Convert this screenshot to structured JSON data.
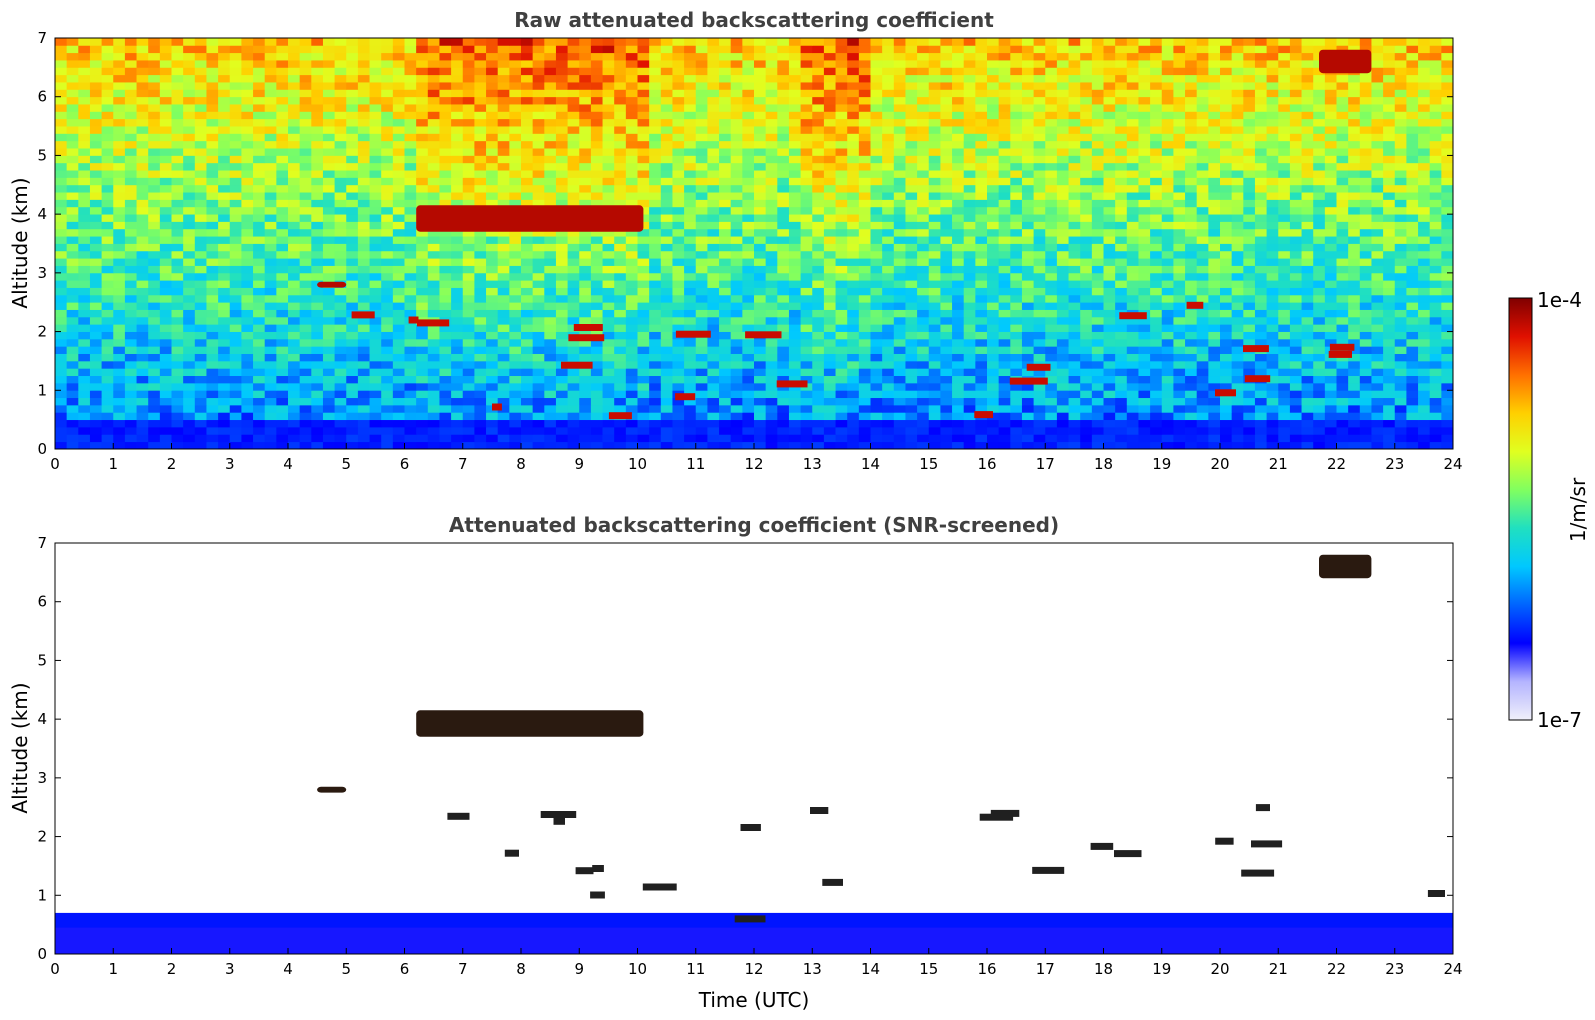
{
  "chart_data": [
    {
      "type": "heatmap",
      "title": "Raw attenuated backscattering coefficient",
      "xlabel": "",
      "ylabel": "Altitude (km)",
      "xlim": [
        0,
        24
      ],
      "ylim": [
        0,
        7
      ],
      "xticks": [
        "0",
        "1",
        "2",
        "3",
        "4",
        "5",
        "6",
        "7",
        "8",
        "9",
        "10",
        "11",
        "12",
        "13",
        "14",
        "15",
        "16",
        "17",
        "18",
        "19",
        "20",
        "21",
        "22",
        "23",
        "24"
      ],
      "yticks": [
        "0",
        "1",
        "2",
        "3",
        "4",
        "5",
        "6",
        "7"
      ],
      "features": [
        {
          "label": "aerosol boundary layer",
          "time": [
            0,
            24
          ],
          "altitude": [
            0,
            0.5
          ]
        },
        {
          "label": "elevated cloud layer",
          "time": [
            6.2,
            10.1
          ],
          "altitude": [
            3.7,
            4.15
          ]
        },
        {
          "label": "cloud",
          "time": [
            4.5,
            5.0
          ],
          "altitude": [
            2.75,
            2.85
          ]
        },
        {
          "label": "high cloud",
          "time": [
            21.7,
            22.6
          ],
          "altitude": [
            6.4,
            6.8
          ]
        },
        {
          "label": "low clouds",
          "time": [
            5,
            24
          ],
          "altitude": [
            0.5,
            2.5
          ]
        }
      ]
    },
    {
      "type": "heatmap",
      "title": "Attenuated backscattering coefficient (SNR-screened)",
      "xlabel": "Time (UTC)",
      "ylabel": "Altitude (km)",
      "xlim": [
        0,
        24
      ],
      "ylim": [
        0,
        7
      ],
      "xticks": [
        "0",
        "1",
        "2",
        "3",
        "4",
        "5",
        "6",
        "7",
        "8",
        "9",
        "10",
        "11",
        "12",
        "13",
        "14",
        "15",
        "16",
        "17",
        "18",
        "19",
        "20",
        "21",
        "22",
        "23",
        "24"
      ],
      "yticks": [
        "0",
        "1",
        "2",
        "3",
        "4",
        "5",
        "6",
        "7"
      ]
    }
  ],
  "colorbar": {
    "label": "1/m/sr",
    "max_label": "1e-4",
    "min_label": "1e-7",
    "scale": "log",
    "colormap": [
      "#f0f0fa",
      "#b4b4ff",
      "#0000ff",
      "#0064ff",
      "#00c8ff",
      "#20e0c0",
      "#80ff60",
      "#e0ff20",
      "#ffd000",
      "#ff7000",
      "#e01000",
      "#800000"
    ]
  }
}
